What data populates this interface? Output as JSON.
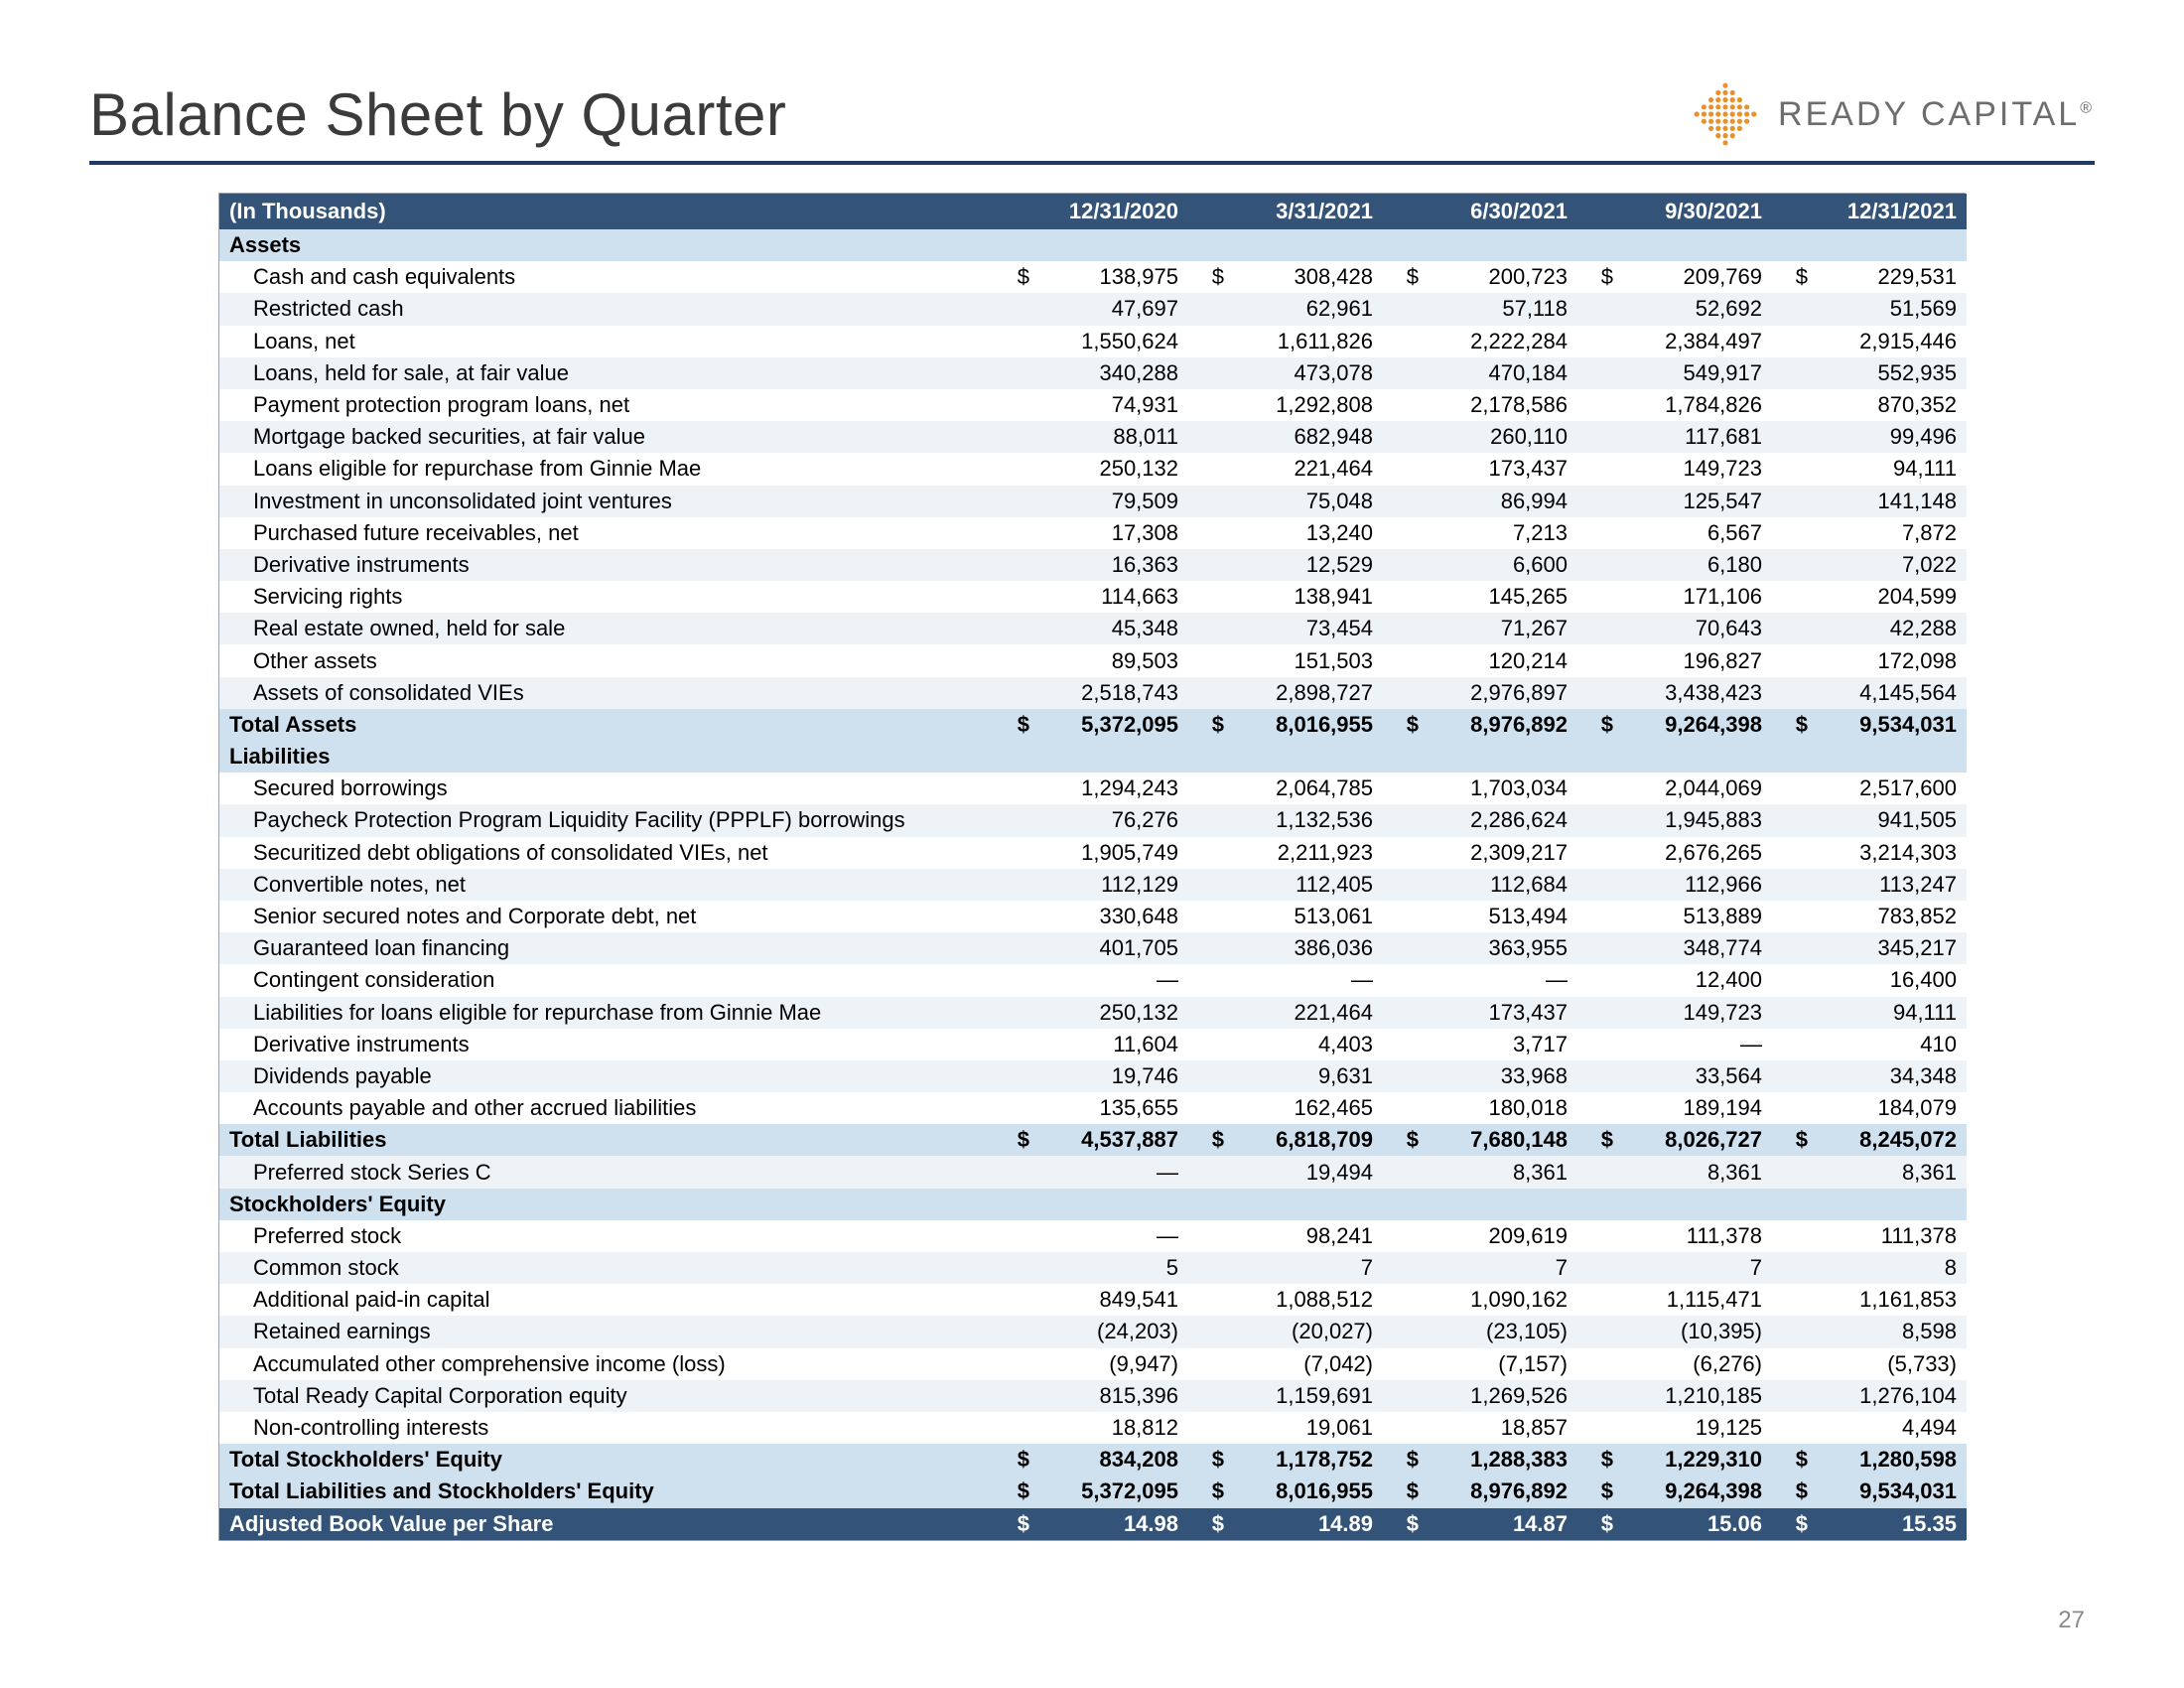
{
  "page": {
    "title": "Balance Sheet by Quarter",
    "brand_name": "READY CAPITAL",
    "brand_reg": "®",
    "page_number": "27"
  },
  "logo": {
    "dot_color": "#e8912b",
    "rows": 9,
    "cols": 9,
    "radius": 2.6,
    "spacing": 7.2,
    "size": 70
  },
  "table": {
    "currency_symbol": "$",
    "header": {
      "label": "(In Thousands)",
      "dates": [
        "12/31/2020",
        "3/31/2021",
        "6/30/2021",
        "9/30/2021",
        "12/31/2021"
      ]
    },
    "colors": {
      "header_bg": "#335478",
      "header_fg": "#ffffff",
      "section_bg": "#cfe0ef",
      "zebra_a": "#ffffff",
      "zebra_b": "#eef3f8",
      "border": "#9aa3ad",
      "rule": "#1f3a63"
    },
    "rows": [
      {
        "type": "section",
        "label": "Assets"
      },
      {
        "type": "data",
        "indent": 1,
        "label": "Cash and cash equivalents",
        "show_sym": true,
        "v": [
          "138,975",
          "308,428",
          "200,723",
          "209,769",
          "229,531"
        ]
      },
      {
        "type": "data",
        "indent": 1,
        "label": "Restricted cash",
        "v": [
          "47,697",
          "62,961",
          "57,118",
          "52,692",
          "51,569"
        ]
      },
      {
        "type": "data",
        "indent": 1,
        "label": "Loans, net",
        "v": [
          "1,550,624",
          "1,611,826",
          "2,222,284",
          "2,384,497",
          "2,915,446"
        ]
      },
      {
        "type": "data",
        "indent": 1,
        "label": "Loans, held for sale, at fair value",
        "v": [
          "340,288",
          "473,078",
          "470,184",
          "549,917",
          "552,935"
        ]
      },
      {
        "type": "data",
        "indent": 1,
        "label": "Payment protection program loans, net",
        "v": [
          "74,931",
          "1,292,808",
          "2,178,586",
          "1,784,826",
          "870,352"
        ]
      },
      {
        "type": "data",
        "indent": 1,
        "label": "Mortgage backed securities, at fair value",
        "v": [
          "88,011",
          "682,948",
          "260,110",
          "117,681",
          "99,496"
        ]
      },
      {
        "type": "data",
        "indent": 1,
        "label": "Loans eligible for repurchase from Ginnie Mae",
        "v": [
          "250,132",
          "221,464",
          "173,437",
          "149,723",
          "94,111"
        ]
      },
      {
        "type": "data",
        "indent": 1,
        "label": "Investment in unconsolidated joint ventures",
        "v": [
          "79,509",
          "75,048",
          "86,994",
          "125,547",
          "141,148"
        ]
      },
      {
        "type": "data",
        "indent": 1,
        "label": "Purchased future receivables, net",
        "v": [
          "17,308",
          "13,240",
          "7,213",
          "6,567",
          "7,872"
        ]
      },
      {
        "type": "data",
        "indent": 1,
        "label": "Derivative instruments",
        "v": [
          "16,363",
          "12,529",
          "6,600",
          "6,180",
          "7,022"
        ]
      },
      {
        "type": "data",
        "indent": 1,
        "label": "Servicing rights",
        "v": [
          "114,663",
          "138,941",
          "145,265",
          "171,106",
          "204,599"
        ]
      },
      {
        "type": "data",
        "indent": 1,
        "label": "Real estate owned, held for sale",
        "v": [
          "45,348",
          "73,454",
          "71,267",
          "70,643",
          "42,288"
        ]
      },
      {
        "type": "data",
        "indent": 1,
        "label": "Other assets",
        "v": [
          "89,503",
          "151,503",
          "120,214",
          "196,827",
          "172,098"
        ]
      },
      {
        "type": "data",
        "indent": 1,
        "label": "Assets of consolidated VIEs",
        "v": [
          "2,518,743",
          "2,898,727",
          "2,976,897",
          "3,438,423",
          "4,145,564"
        ]
      },
      {
        "type": "total",
        "label": "Total Assets",
        "show_sym": true,
        "v": [
          "5,372,095",
          "8,016,955",
          "8,976,892",
          "9,264,398",
          "9,534,031"
        ]
      },
      {
        "type": "section",
        "label": "Liabilities"
      },
      {
        "type": "data",
        "indent": 1,
        "label": "Secured borrowings",
        "v": [
          "1,294,243",
          "2,064,785",
          "1,703,034",
          "2,044,069",
          "2,517,600"
        ]
      },
      {
        "type": "data",
        "indent": 1,
        "label": "Paycheck Protection Program Liquidity Facility (PPPLF) borrowings",
        "v": [
          "76,276",
          "1,132,536",
          "2,286,624",
          "1,945,883",
          "941,505"
        ]
      },
      {
        "type": "data",
        "indent": 1,
        "label": "Securitized debt obligations of consolidated VIEs, net",
        "v": [
          "1,905,749",
          "2,211,923",
          "2,309,217",
          "2,676,265",
          "3,214,303"
        ]
      },
      {
        "type": "data",
        "indent": 1,
        "label": "Convertible notes, net",
        "v": [
          "112,129",
          "112,405",
          "112,684",
          "112,966",
          "113,247"
        ]
      },
      {
        "type": "data",
        "indent": 1,
        "label": "Senior secured notes and Corporate debt, net",
        "v": [
          "330,648",
          "513,061",
          "513,494",
          "513,889",
          "783,852"
        ]
      },
      {
        "type": "data",
        "indent": 1,
        "label": "Guaranteed loan financing",
        "v": [
          "401,705",
          "386,036",
          "363,955",
          "348,774",
          "345,217"
        ]
      },
      {
        "type": "data",
        "indent": 1,
        "label": "Contingent consideration",
        "v": [
          "—",
          "—",
          "—",
          "12,400",
          "16,400"
        ]
      },
      {
        "type": "data",
        "indent": 1,
        "label": "Liabilities for loans eligible for repurchase from Ginnie Mae",
        "v": [
          "250,132",
          "221,464",
          "173,437",
          "149,723",
          "94,111"
        ]
      },
      {
        "type": "data",
        "indent": 1,
        "label": "Derivative instruments",
        "v": [
          "11,604",
          "4,403",
          "3,717",
          "—",
          "410"
        ]
      },
      {
        "type": "data",
        "indent": 1,
        "label": "Dividends payable",
        "v": [
          "19,746",
          "9,631",
          "33,968",
          "33,564",
          "34,348"
        ]
      },
      {
        "type": "data",
        "indent": 1,
        "label": "Accounts payable and other accrued liabilities",
        "v": [
          "135,655",
          "162,465",
          "180,018",
          "189,194",
          "184,079"
        ]
      },
      {
        "type": "total",
        "label": "Total Liabilities",
        "show_sym": true,
        "v": [
          "4,537,887",
          "6,818,709",
          "7,680,148",
          "8,026,727",
          "8,245,072"
        ]
      },
      {
        "type": "data",
        "indent": 1,
        "label": "Preferred stock Series C",
        "v": [
          "—",
          "19,494",
          "8,361",
          "8,361",
          "8,361"
        ]
      },
      {
        "type": "section",
        "label": "Stockholders' Equity"
      },
      {
        "type": "data",
        "indent": 1,
        "label": "Preferred stock",
        "v": [
          "—",
          "98,241",
          "209,619",
          "111,378",
          "111,378"
        ]
      },
      {
        "type": "data",
        "indent": 1,
        "label": "Common stock",
        "v": [
          "5",
          "7",
          "7",
          "7",
          "8"
        ]
      },
      {
        "type": "data",
        "indent": 1,
        "label": "Additional paid-in capital",
        "v": [
          "849,541",
          "1,088,512",
          "1,090,162",
          "1,115,471",
          "1,161,853"
        ]
      },
      {
        "type": "data",
        "indent": 1,
        "label": "Retained earnings",
        "v": [
          "(24,203)",
          "(20,027)",
          "(23,105)",
          "(10,395)",
          "8,598"
        ]
      },
      {
        "type": "data",
        "indent": 1,
        "label": "Accumulated other comprehensive income (loss)",
        "v": [
          "(9,947)",
          "(7,042)",
          "(7,157)",
          "(6,276)",
          "(5,733)"
        ]
      },
      {
        "type": "data",
        "indent": 1,
        "label": "Total Ready Capital Corporation equity",
        "v": [
          "815,396",
          "1,159,691",
          "1,269,526",
          "1,210,185",
          "1,276,104"
        ]
      },
      {
        "type": "data",
        "indent": 1,
        "label": "Non-controlling interests",
        "v": [
          "18,812",
          "19,061",
          "18,857",
          "19,125",
          "4,494"
        ]
      },
      {
        "type": "total",
        "label": "Total Stockholders' Equity",
        "show_sym": true,
        "v": [
          "834,208",
          "1,178,752",
          "1,288,383",
          "1,229,310",
          "1,280,598"
        ]
      },
      {
        "type": "total",
        "label": "Total Liabilities and Stockholders' Equity",
        "show_sym": true,
        "v": [
          "5,372,095",
          "8,016,955",
          "8,976,892",
          "9,264,398",
          "9,534,031"
        ]
      },
      {
        "type": "total-dark",
        "label": "Adjusted Book Value per Share",
        "show_sym": true,
        "v": [
          "14.98",
          "14.89",
          "14.87",
          "15.06",
          "15.35"
        ]
      }
    ]
  }
}
